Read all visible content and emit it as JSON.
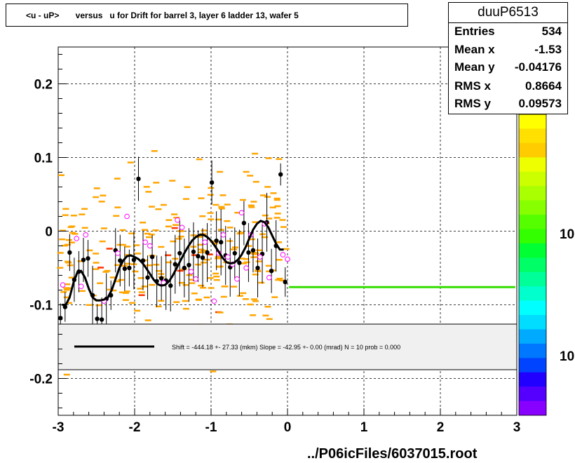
{
  "title": "<u - uP>       versus   u for Drift for barrel 3, layer 6 ladder 13, wafer 5",
  "stats": {
    "name": "duuP6513",
    "rows": [
      {
        "label": "Entries",
        "value": "534"
      },
      {
        "label": "Mean x",
        "value": "-1.53"
      },
      {
        "label": "Mean y",
        "value": "-0.04176"
      },
      {
        "label": "RMS x",
        "value": "0.8664"
      },
      {
        "label": "RMS y",
        "value": "0.09573"
      }
    ]
  },
  "fit_legend": "Shift =  -444.18 +- 27.33 (mkm) Slope =   -42.95 +- 0.00 (mrad)  N = 10 prob = 0.000",
  "footer": "../P06icFiles/6037015.root",
  "chart_data": {
    "type": "scatter",
    "xlim": [
      -3,
      3
    ],
    "ylim": [
      -0.25,
      0.25
    ],
    "x_ticks": [
      "-3",
      "-2",
      "-1",
      "0",
      "1",
      "2",
      "3"
    ],
    "y_ticks": [
      "-0.2",
      "-0.1",
      "0",
      "0.1",
      "0.2"
    ],
    "color_scale_labels": [
      "10",
      "10"
    ],
    "grid": true,
    "profile_black": {
      "x": [
        -2.97,
        -2.91,
        -2.85,
        -2.79,
        -2.73,
        -2.67,
        -2.61,
        -2.55,
        -2.49,
        -2.43,
        -2.37,
        -2.31,
        -2.25,
        -2.19,
        -2.13,
        -2.07,
        -2.01,
        -1.95,
        -1.89,
        -1.83,
        -1.77,
        -1.71,
        -1.65,
        -1.59,
        -1.53,
        -1.47,
        -1.41,
        -1.35,
        -1.29,
        -1.23,
        -1.17,
        -1.11,
        -1.05,
        -0.99,
        -0.93,
        -0.87,
        -0.81,
        -0.75,
        -0.69,
        -0.63,
        -0.57,
        -0.51,
        -0.45,
        -0.39,
        -0.33,
        -0.27,
        -0.21,
        -0.15,
        -0.09,
        -0.03
      ],
      "y": [
        -0.118,
        -0.103,
        -0.029,
        -0.066,
        -0.055,
        -0.039,
        -0.037,
        -0.087,
        -0.119,
        -0.12,
        -0.092,
        -0.087,
        -0.026,
        -0.04,
        -0.051,
        -0.05,
        -0.039,
        0.071,
        -0.04,
        -0.063,
        -0.035,
        -0.068,
        -0.064,
        -0.067,
        -0.074,
        -0.045,
        -0.03,
        -0.05,
        -0.046,
        -0.028,
        -0.034,
        -0.036,
        -0.029,
        0.066,
        -0.013,
        -0.015,
        -0.033,
        -0.049,
        -0.03,
        -0.043,
        0.011,
        -0.029,
        -0.026,
        -0.05,
        -0.031,
        0.012,
        -0.054,
        -0.02,
        0.077,
        -0.069
      ],
      "err": [
        0.02,
        0.02,
        0.025,
        0.03,
        0.028,
        0.03,
        0.025,
        0.04,
        0.02,
        0.03,
        0.035,
        0.02,
        0.03,
        0.035,
        0.03,
        0.025,
        0.04,
        0.03,
        0.04,
        0.03,
        0.03,
        0.035,
        0.03,
        0.04,
        0.035,
        0.04,
        0.045,
        0.04,
        0.05,
        0.04,
        0.035,
        0.04,
        0.04,
        0.03,
        0.04,
        0.045,
        0.04,
        0.04,
        0.035,
        0.045,
        0.03,
        0.04,
        0.03,
        0.04,
        0.04,
        0.04,
        0.03,
        0.035,
        0.015,
        0.02
      ]
    },
    "profile_magenta": {
      "x": [
        -2.94,
        -2.76,
        -2.7,
        -2.64,
        -2.4,
        -2.22,
        -2.1,
        -1.86,
        -1.8,
        -1.62,
        -1.44,
        -1.38,
        -1.26,
        -1.2,
        -1.08,
        -0.96,
        -0.9,
        -0.84,
        -0.78,
        -0.72,
        -0.66,
        -0.6,
        -0.54,
        -0.48,
        -0.36,
        -0.3,
        -0.24,
        -0.06,
        -0.0
      ],
      "y": [
        -0.073,
        -0.01,
        -0.075,
        -0.005,
        -0.095,
        -0.03,
        0.02,
        -0.015,
        -0.02,
        -0.07,
        0.015,
        0.005,
        -0.055,
        -0.065,
        -0.015,
        -0.095,
        -0.03,
        -0.005,
        -0.035,
        -0.045,
        -0.065,
        0.025,
        -0.05,
        -0.005,
        -0.035,
        0.01,
        -0.063,
        -0.032,
        -0.038
      ]
    },
    "fit_curve": {
      "x": [
        -2.95,
        -2.9,
        -2.85,
        -2.8,
        -2.75,
        -2.7,
        -2.65,
        -2.6,
        -2.55,
        -2.5,
        -2.45,
        -2.4,
        -2.35,
        -2.3,
        -2.25,
        -2.2,
        -2.15,
        -2.1,
        -2.05,
        -2.0,
        -1.95,
        -1.9,
        -1.85,
        -1.8,
        -1.75,
        -1.7,
        -1.65,
        -1.6,
        -1.55,
        -1.5,
        -1.45,
        -1.4,
        -1.35,
        -1.3,
        -1.25,
        -1.2,
        -1.15,
        -1.1,
        -1.05,
        -1.0,
        -0.95,
        -0.9,
        -0.85,
        -0.8,
        -0.75,
        -0.7,
        -0.65,
        -0.6,
        -0.55,
        -0.5,
        -0.45,
        -0.4,
        -0.35,
        -0.3,
        -0.25,
        -0.2,
        -0.15,
        -0.1,
        -0.05
      ],
      "y": [
        -0.1,
        -0.1,
        -0.09,
        -0.07,
        -0.056,
        -0.054,
        -0.063,
        -0.078,
        -0.09,
        -0.094,
        -0.094,
        -0.093,
        -0.09,
        -0.08,
        -0.065,
        -0.05,
        -0.04,
        -0.034,
        -0.033,
        -0.035,
        -0.038,
        -0.043,
        -0.05,
        -0.058,
        -0.066,
        -0.072,
        -0.074,
        -0.073,
        -0.068,
        -0.06,
        -0.05,
        -0.04,
        -0.03,
        -0.021,
        -0.013,
        -0.008,
        -0.005,
        -0.005,
        -0.008,
        -0.013,
        -0.02,
        -0.028,
        -0.036,
        -0.042,
        -0.044,
        -0.043,
        -0.039,
        -0.032,
        -0.022,
        -0.01,
        0.002,
        0.01,
        0.014,
        0.012,
        0.005,
        -0.006,
        -0.017,
        -0.025,
        -0.025
      ]
    },
    "green_line": {
      "x": [
        0.02,
        2.98
      ],
      "y": [
        -0.076,
        -0.076
      ]
    }
  }
}
